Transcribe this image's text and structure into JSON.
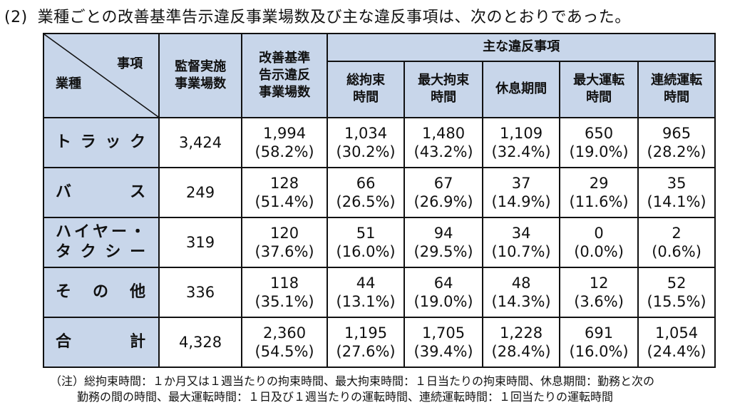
{
  "heading": {
    "number": "(2)",
    "text": "業種ごとの改善基準告示違反事業場数及び主な違反事項は、次のとおりであった。"
  },
  "table": {
    "corner": {
      "top_right": "事項",
      "bottom_left": "業種"
    },
    "col_inspected": [
      "監督実施",
      "事業場数"
    ],
    "col_violation": [
      "改善基準",
      "告示違反",
      "事業場数"
    ],
    "group_header": "主な違反事項",
    "sub_headers": [
      [
        "総拘束",
        "時間"
      ],
      [
        "最大拘束",
        "時間"
      ],
      [
        "休息期間",
        ""
      ],
      [
        "最大運転",
        "時間"
      ],
      [
        "連続運転",
        "時間"
      ]
    ],
    "rows": [
      {
        "label": [
          "ト",
          "ラ",
          "ッ",
          "ク"
        ],
        "inspected": "3,424",
        "cells": [
          [
            "1,994",
            "(58.2%)"
          ],
          [
            "1,034",
            "(30.2%)"
          ],
          [
            "1,480",
            "(43.2%)"
          ],
          [
            "1,109",
            "(32.4%)"
          ],
          [
            "650",
            "(19.0%)"
          ],
          [
            "965",
            "(28.2%)"
          ]
        ]
      },
      {
        "label": [
          "バ",
          "ス"
        ],
        "inspected": "249",
        "cells": [
          [
            "128",
            "(51.4%)"
          ],
          [
            "66",
            "(26.5%)"
          ],
          [
            "67",
            "(26.9%)"
          ],
          [
            "37",
            "(14.9%)"
          ],
          [
            "29",
            "(11.6%)"
          ],
          [
            "35",
            "(14.1%)"
          ]
        ]
      },
      {
        "label_lines": [
          [
            "ハ",
            "イ",
            "ヤ",
            "ー",
            "・"
          ],
          [
            "タ",
            "ク",
            "シ",
            "ー"
          ]
        ],
        "inspected": "319",
        "cells": [
          [
            "120",
            "(37.6%)"
          ],
          [
            "51",
            "(16.0%)"
          ],
          [
            "94",
            "(29.5%)"
          ],
          [
            "34",
            "(10.7%)"
          ],
          [
            "0",
            "(0.0%)"
          ],
          [
            "2",
            "(0.6%)"
          ]
        ]
      },
      {
        "label": [
          "そ",
          "の",
          "他"
        ],
        "inspected": "336",
        "cells": [
          [
            "118",
            "(35.1%)"
          ],
          [
            "44",
            "(13.1%)"
          ],
          [
            "64",
            "(19.0%)"
          ],
          [
            "48",
            "(14.3%)"
          ],
          [
            "12",
            "(3.6%)"
          ],
          [
            "52",
            "(15.5%)"
          ]
        ]
      },
      {
        "label": [
          "合",
          "計"
        ],
        "inspected": "4,328",
        "cells": [
          [
            "2,360",
            "(54.5%)"
          ],
          [
            "1,195",
            "(27.6%)"
          ],
          [
            "1,705",
            "(39.4%)"
          ],
          [
            "1,228",
            "(28.4%)"
          ],
          [
            "691",
            "(16.0%)"
          ],
          [
            "1,054",
            "(24.4%)"
          ]
        ]
      }
    ]
  },
  "note": {
    "line1": "（注）総拘束時間：１か月又は１週当たりの拘束時間、最大拘束時間：１日当たりの拘束時間、休息期間：勤務と次の",
    "line2": "勤務の間の時間、最大運転時間：１日及び１週当たりの運転時間、連続運転時間：１回当たりの運転時間"
  },
  "colors": {
    "header_bg": "#c8d6ea",
    "border": "#111111"
  }
}
